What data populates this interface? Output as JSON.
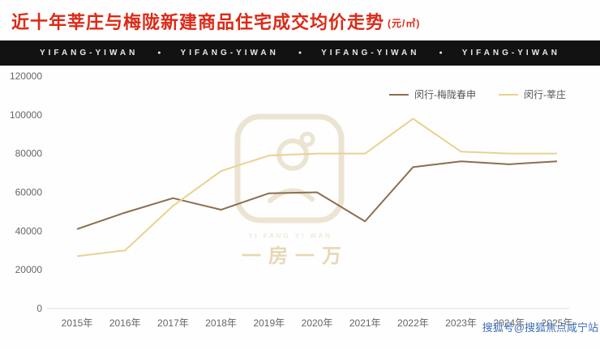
{
  "header": {
    "title": "近十年莘庄与梅陇新建商品住宅成交均价走势",
    "unit": "(元/㎡)",
    "title_color": "#dc2a17"
  },
  "banner": {
    "items": [
      "YIFANG-YIWAN",
      "YIFANG-YIWAN",
      "YIFANG-YIWAN",
      "YIFANG-YIWAN"
    ],
    "separator": "●",
    "background": "#121212",
    "text_color": "#e9e9e9"
  },
  "chart_data": {
    "type": "line",
    "categories": [
      "2015年",
      "2016年",
      "2017年",
      "2018年",
      "2019年",
      "2020年",
      "2021年",
      "2022年",
      "2023年",
      "2024年",
      "2025年"
    ],
    "series": [
      {
        "name": "闵行-梅陇春申",
        "color": "#8c6e4e",
        "values": [
          41000,
          49500,
          57000,
          51000,
          59500,
          60000,
          45000,
          73000,
          76000,
          74500,
          76000
        ]
      },
      {
        "name": "闵行-莘庄",
        "color": "#e8d28f",
        "values": [
          27000,
          30000,
          53000,
          71000,
          79000,
          80000,
          80000,
          98000,
          81000,
          80000,
          80000
        ]
      }
    ],
    "ylim": [
      0,
      120000
    ],
    "ytick_step": 20000,
    "grid": false,
    "legend_position": "top-right"
  },
  "watermarks": {
    "logo_text": "一房一万",
    "logo_sub": "YI FANG YI WAN",
    "sohu": "搜狐号@搜狐焦点咸宁站"
  }
}
